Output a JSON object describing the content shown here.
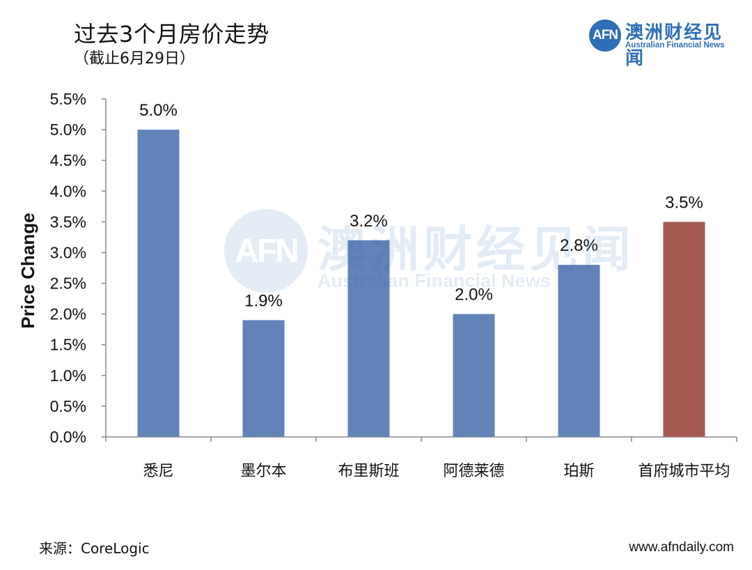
{
  "header": {
    "title": "过去3个月房价走势",
    "subtitle": "（截止6月29日）"
  },
  "logo": {
    "mark": "AFN",
    "name_cn": "澳洲财经见闻",
    "name_en": "Australian Financial News"
  },
  "footer": {
    "source": "来源：CoreLogic",
    "website": "www.afndaily.com"
  },
  "colors": {
    "city_bar": "#6283b8",
    "average_bar": "#a65a52",
    "brand": "#2e6fb7"
  },
  "chart_data": {
    "type": "bar",
    "title": "过去3个月房价走势",
    "subtitle": "（截止6月29日）",
    "xlabel": "",
    "ylabel": "Price Change",
    "ylim": [
      0,
      5.5
    ],
    "yticks": [
      "0.0%",
      "0.5%",
      "1.0%",
      "1.5%",
      "2.0%",
      "2.5%",
      "3.0%",
      "3.5%",
      "4.0%",
      "4.5%",
      "5.0%",
      "5.5%"
    ],
    "categories": [
      "悉尼",
      "墨尔本",
      "布里斯班",
      "阿德莱德",
      "珀斯",
      "首府城市平均"
    ],
    "values": [
      5.0,
      1.9,
      3.2,
      2.0,
      2.8,
      3.5
    ],
    "data_labels": [
      "5.0%",
      "1.9%",
      "3.2%",
      "2.0%",
      "2.8%",
      "3.5%"
    ],
    "grid": false,
    "legend": "none"
  }
}
